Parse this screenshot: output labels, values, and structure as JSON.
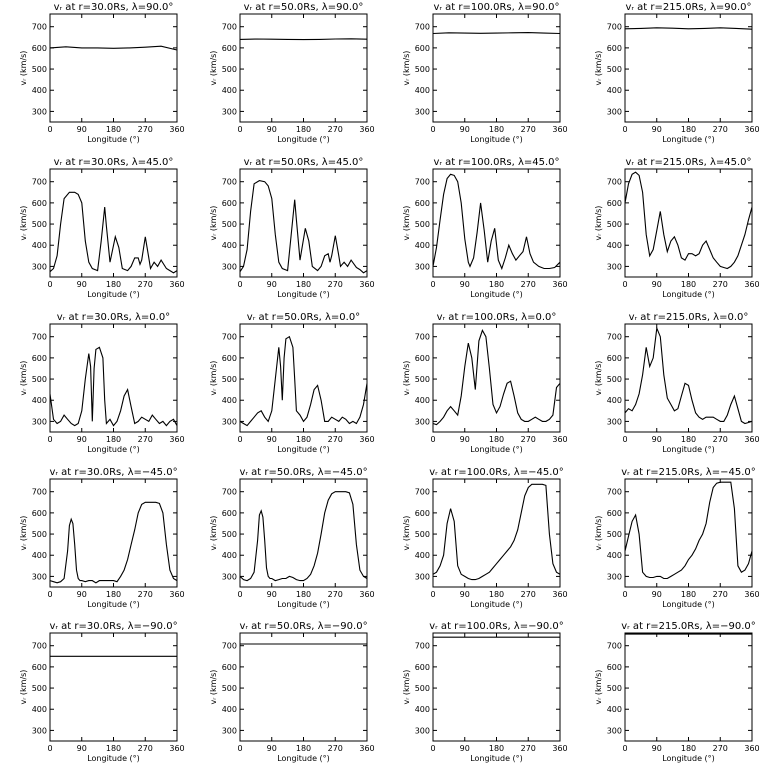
{
  "chart_data": {
    "type": "line",
    "layout": {
      "rows": 5,
      "cols": 4
    },
    "xlabel": "Longitude (°)",
    "ylabel": "vᵣ (km/s)",
    "xlim": [
      0,
      360
    ],
    "ylim": [
      250,
      760
    ],
    "xticks": [
      0,
      90,
      180,
      270,
      360
    ],
    "yticks": [
      300,
      400,
      500,
      600,
      700
    ],
    "grid": false,
    "panels": [
      {
        "title": "vᵣ at r=30.0Rs, λ=90.0°",
        "x": [
          0,
          45,
          90,
          135,
          180,
          225,
          270,
          315,
          360
        ],
        "y": [
          600,
          605,
          600,
          600,
          598,
          600,
          603,
          608,
          590
        ]
      },
      {
        "title": "vᵣ at r=50.0Rs, λ=90.0°",
        "x": [
          0,
          45,
          90,
          135,
          180,
          225,
          270,
          315,
          360
        ],
        "y": [
          640,
          642,
          641,
          640,
          639,
          640,
          642,
          643,
          641
        ]
      },
      {
        "title": "vᵣ at r=100.0Rs, λ=90.0°",
        "x": [
          0,
          45,
          90,
          135,
          180,
          225,
          270,
          315,
          360
        ],
        "y": [
          668,
          671,
          670,
          669,
          670,
          671,
          672,
          670,
          668
        ]
      },
      {
        "title": "vᵣ at r=215.0Rs, λ=90.0°",
        "x": [
          0,
          45,
          90,
          135,
          180,
          225,
          270,
          315,
          360
        ],
        "y": [
          690,
          692,
          695,
          693,
          690,
          692,
          695,
          692,
          688
        ]
      },
      {
        "title": "vᵣ at r=30.0Rs, λ=45.0°",
        "x": [
          0,
          10,
          20,
          30,
          40,
          55,
          70,
          80,
          90,
          100,
          110,
          120,
          135,
          145,
          155,
          160,
          170,
          185,
          195,
          205,
          220,
          230,
          240,
          250,
          255,
          260,
          270,
          280,
          285,
          295,
          305,
          315,
          330,
          340,
          350,
          360
        ],
        "y": [
          275,
          290,
          350,
          500,
          620,
          650,
          650,
          640,
          600,
          420,
          320,
          290,
          280,
          420,
          580,
          490,
          320,
          440,
          390,
          290,
          280,
          300,
          340,
          340,
          310,
          330,
          440,
          340,
          290,
          320,
          300,
          330,
          290,
          280,
          270,
          280
        ]
      },
      {
        "title": "vᵣ at r=50.0Rs, λ=45.0°",
        "x": [
          0,
          10,
          20,
          30,
          40,
          55,
          70,
          80,
          90,
          100,
          110,
          120,
          135,
          145,
          155,
          160,
          170,
          185,
          195,
          205,
          220,
          230,
          240,
          250,
          255,
          260,
          270,
          280,
          285,
          295,
          305,
          315,
          330,
          340,
          350,
          360
        ],
        "y": [
          275,
          300,
          380,
          560,
          690,
          705,
          700,
          680,
          620,
          450,
          320,
          290,
          280,
          450,
          615,
          520,
          330,
          480,
          420,
          300,
          280,
          300,
          350,
          360,
          320,
          350,
          445,
          350,
          300,
          320,
          300,
          330,
          295,
          285,
          270,
          280
        ]
      },
      {
        "title": "vᵣ at r=100.0Rs, λ=45.0°",
        "x": [
          0,
          10,
          20,
          30,
          40,
          50,
          60,
          70,
          80,
          90,
          100,
          105,
          115,
          125,
          135,
          145,
          155,
          165,
          175,
          185,
          195,
          205,
          215,
          225,
          235,
          245,
          255,
          265,
          275,
          285,
          300,
          315,
          330,
          345,
          360
        ],
        "y": [
          300,
          390,
          520,
          640,
          715,
          735,
          730,
          700,
          600,
          430,
          320,
          300,
          340,
          460,
          600,
          470,
          320,
          420,
          480,
          330,
          290,
          340,
          400,
          360,
          330,
          350,
          370,
          440,
          360,
          320,
          300,
          290,
          290,
          295,
          320
        ]
      },
      {
        "title": "vᵣ at r=215.0Rs, λ=45.0°",
        "x": [
          0,
          10,
          20,
          30,
          40,
          50,
          60,
          70,
          80,
          90,
          100,
          110,
          120,
          130,
          140,
          150,
          160,
          170,
          180,
          190,
          200,
          210,
          220,
          230,
          240,
          250,
          260,
          270,
          280,
          290,
          300,
          310,
          320,
          330,
          340,
          350,
          360
        ],
        "y": [
          600,
          690,
          735,
          745,
          730,
          650,
          450,
          350,
          380,
          470,
          560,
          450,
          370,
          420,
          440,
          400,
          340,
          330,
          360,
          360,
          350,
          360,
          400,
          420,
          380,
          340,
          320,
          300,
          295,
          290,
          300,
          320,
          350,
          400,
          450,
          520,
          580
        ]
      },
      {
        "title": "vᵣ at r=30.0Rs, λ=0.0°",
        "x": [
          0,
          10,
          20,
          30,
          40,
          50,
          60,
          70,
          80,
          90,
          100,
          110,
          115,
          120,
          125,
          130,
          140,
          150,
          155,
          160,
          170,
          180,
          190,
          200,
          210,
          220,
          230,
          240,
          250,
          260,
          270,
          280,
          290,
          300,
          310,
          320,
          330,
          340,
          350,
          360
        ],
        "y": [
          430,
          310,
          290,
          300,
          330,
          310,
          290,
          280,
          290,
          350,
          500,
          620,
          560,
          300,
          550,
          640,
          650,
          600,
          400,
          290,
          310,
          280,
          300,
          350,
          420,
          450,
          370,
          290,
          300,
          320,
          310,
          300,
          330,
          310,
          290,
          300,
          280,
          300,
          310,
          280
        ]
      },
      {
        "title": "vᵣ at r=50.0Rs, λ=0.0°",
        "x": [
          0,
          10,
          20,
          30,
          40,
          50,
          60,
          70,
          80,
          90,
          100,
          110,
          115,
          120,
          125,
          130,
          140,
          150,
          155,
          160,
          170,
          180,
          190,
          200,
          210,
          220,
          230,
          240,
          250,
          260,
          270,
          280,
          290,
          300,
          310,
          320,
          330,
          340,
          350,
          360
        ],
        "y": [
          300,
          290,
          280,
          300,
          320,
          340,
          350,
          320,
          300,
          350,
          500,
          650,
          560,
          400,
          600,
          690,
          700,
          650,
          500,
          350,
          330,
          300,
          320,
          380,
          450,
          470,
          400,
          300,
          300,
          320,
          310,
          300,
          320,
          310,
          290,
          300,
          290,
          320,
          380,
          480
        ]
      },
      {
        "title": "vᵣ at r=100.0Rs, λ=0.0°",
        "x": [
          0,
          10,
          20,
          30,
          40,
          50,
          60,
          70,
          80,
          90,
          100,
          110,
          120,
          130,
          140,
          150,
          160,
          170,
          180,
          190,
          200,
          210,
          220,
          230,
          240,
          250,
          260,
          270,
          280,
          290,
          300,
          310,
          320,
          330,
          340,
          350,
          360
        ],
        "y": [
          290,
          285,
          300,
          320,
          350,
          370,
          350,
          330,
          420,
          560,
          670,
          600,
          450,
          680,
          730,
          700,
          550,
          380,
          340,
          370,
          430,
          480,
          490,
          420,
          340,
          310,
          300,
          300,
          310,
          320,
          310,
          300,
          300,
          310,
          330,
          460,
          480
        ]
      },
      {
        "title": "vᵣ at r=215.0Rs, λ=0.0°",
        "x": [
          0,
          10,
          20,
          30,
          40,
          50,
          60,
          70,
          80,
          90,
          100,
          110,
          120,
          130,
          140,
          150,
          160,
          170,
          180,
          190,
          200,
          210,
          220,
          230,
          240,
          250,
          260,
          270,
          280,
          290,
          300,
          310,
          320,
          330,
          340,
          350,
          360
        ],
        "y": [
          340,
          360,
          350,
          380,
          430,
          520,
          650,
          560,
          600,
          740,
          700,
          520,
          410,
          380,
          350,
          360,
          420,
          480,
          470,
          400,
          340,
          320,
          310,
          320,
          320,
          320,
          310,
          300,
          300,
          330,
          380,
          420,
          360,
          300,
          290,
          295,
          300
        ]
      },
      {
        "title": "vᵣ at r=30.0Rs, λ=−45.0°",
        "x": [
          0,
          10,
          20,
          30,
          40,
          50,
          55,
          60,
          65,
          70,
          75,
          80,
          85,
          90,
          100,
          110,
          120,
          130,
          140,
          150,
          160,
          170,
          180,
          190,
          200,
          210,
          220,
          230,
          240,
          250,
          260,
          270,
          280,
          290,
          300,
          310,
          320,
          330,
          340,
          350,
          360
        ],
        "y": [
          280,
          275,
          270,
          275,
          290,
          420,
          540,
          570,
          550,
          450,
          330,
          290,
          280,
          280,
          275,
          280,
          280,
          270,
          280,
          280,
          280,
          280,
          280,
          275,
          300,
          330,
          380,
          450,
          520,
          600,
          640,
          650,
          650,
          650,
          650,
          645,
          600,
          450,
          330,
          290,
          280
        ]
      },
      {
        "title": "vᵣ at r=50.0Rs, λ=−45.0°",
        "x": [
          0,
          10,
          20,
          30,
          40,
          50,
          55,
          60,
          65,
          70,
          75,
          80,
          85,
          90,
          100,
          110,
          120,
          130,
          140,
          150,
          160,
          170,
          180,
          190,
          200,
          210,
          220,
          230,
          240,
          250,
          260,
          270,
          280,
          290,
          300,
          310,
          320,
          330,
          340,
          350,
          360
        ],
        "y": [
          300,
          285,
          280,
          290,
          320,
          470,
          590,
          610,
          580,
          470,
          340,
          300,
          290,
          290,
          280,
          285,
          290,
          290,
          300,
          295,
          285,
          280,
          280,
          290,
          310,
          350,
          410,
          500,
          600,
          660,
          690,
          700,
          700,
          700,
          700,
          695,
          640,
          450,
          330,
          300,
          290
        ]
      },
      {
        "title": "vᵣ at r=100.0Rs, λ=−45.0°",
        "x": [
          0,
          10,
          20,
          30,
          40,
          50,
          60,
          70,
          80,
          90,
          100,
          110,
          120,
          130,
          140,
          150,
          160,
          170,
          180,
          190,
          200,
          210,
          220,
          230,
          240,
          250,
          260,
          270,
          280,
          290,
          300,
          310,
          320,
          330,
          340,
          350,
          360
        ],
        "y": [
          310,
          320,
          350,
          400,
          550,
          620,
          560,
          350,
          310,
          300,
          290,
          285,
          285,
          290,
          300,
          310,
          320,
          340,
          360,
          380,
          400,
          420,
          440,
          470,
          520,
          600,
          680,
          720,
          735,
          735,
          735,
          735,
          730,
          500,
          360,
          320,
          310
        ]
      },
      {
        "title": "vᵣ at r=215.0Rs, λ=−45.0°",
        "x": [
          0,
          10,
          20,
          30,
          40,
          50,
          60,
          70,
          80,
          90,
          100,
          110,
          120,
          130,
          140,
          150,
          160,
          170,
          180,
          190,
          200,
          210,
          220,
          230,
          240,
          250,
          260,
          270,
          280,
          290,
          300,
          310,
          320,
          330,
          340,
          350,
          360
        ],
        "y": [
          420,
          490,
          560,
          590,
          500,
          320,
          300,
          295,
          295,
          300,
          300,
          290,
          290,
          300,
          310,
          320,
          330,
          350,
          380,
          400,
          430,
          470,
          500,
          550,
          650,
          720,
          740,
          745,
          745,
          745,
          745,
          620,
          350,
          320,
          330,
          360,
          420
        ]
      },
      {
        "title": "vᵣ at r=30.0Rs, λ=−90.0°",
        "x": [
          0,
          90,
          180,
          270,
          360
        ],
        "y": [
          650,
          650,
          650,
          650,
          650
        ]
      },
      {
        "title": "vᵣ at r=50.0Rs, λ=−90.0°",
        "x": [
          0,
          90,
          180,
          270,
          360
        ],
        "y": [
          708,
          708,
          708,
          708,
          708
        ]
      },
      {
        "title": "vᵣ at r=100.0Rs, λ=−90.0°",
        "x": [
          0,
          90,
          180,
          270,
          360
        ],
        "y": [
          740,
          740,
          740,
          740,
          740
        ]
      },
      {
        "title": "vᵣ at r=215.0Rs, λ=−90.0°",
        "x": [
          0,
          90,
          180,
          270,
          360
        ],
        "y": [
          755,
          755,
          755,
          755,
          755
        ]
      }
    ]
  }
}
